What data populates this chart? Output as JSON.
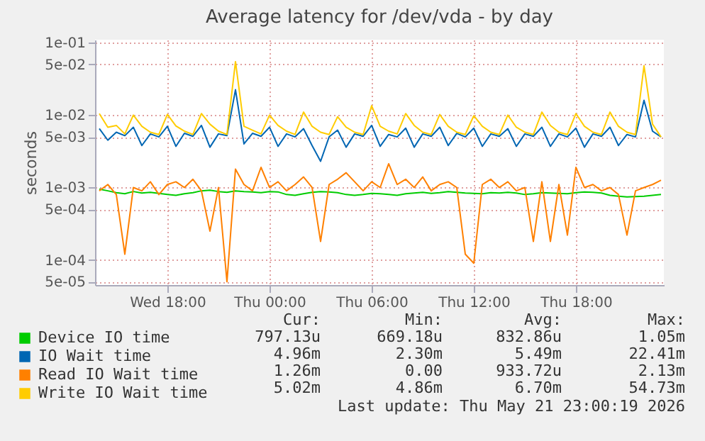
{
  "chart_data": {
    "type": "line",
    "title": "Average latency for /dev/vda - by day",
    "ylabel": "seconds",
    "log": "y",
    "grid": true,
    "legend": "bottom",
    "xlim": [
      "2026-05-20T13:45",
      "2026-05-21T23:10"
    ],
    "xticks": [
      {
        "value": "2026-05-20T18:00",
        "label": "Wed 18:00"
      },
      {
        "value": "2026-05-21T00:00",
        "label": "Thu 00:00"
      },
      {
        "value": "2026-05-21T06:00",
        "label": "Thu 06:00"
      },
      {
        "value": "2026-05-21T12:00",
        "label": "Thu 12:00"
      },
      {
        "value": "2026-05-21T18:00",
        "label": "Thu 18:00"
      }
    ],
    "ylim": [
      4.5e-05,
      0.11
    ],
    "yticks": [
      {
        "value": 5e-05,
        "label": "5e-05"
      },
      {
        "value": 0.0001,
        "label": "1e-04"
      },
      {
        "value": 0.0005,
        "label": "5e-04"
      },
      {
        "value": 0.001,
        "label": "1e-03"
      },
      {
        "value": 0.005,
        "label": "5e-03"
      },
      {
        "value": 0.01,
        "label": "1e-02"
      },
      {
        "value": 0.05,
        "label": "5e-02"
      },
      {
        "value": 0.1,
        "label": "1e-01"
      }
    ],
    "x": [
      "2026-05-20T14:00",
      "2026-05-20T14:30",
      "2026-05-20T15:00",
      "2026-05-20T15:30",
      "2026-05-20T16:00",
      "2026-05-20T16:30",
      "2026-05-20T17:00",
      "2026-05-20T17:30",
      "2026-05-20T18:00",
      "2026-05-20T18:30",
      "2026-05-20T19:00",
      "2026-05-20T19:30",
      "2026-05-20T20:00",
      "2026-05-20T20:30",
      "2026-05-20T21:00",
      "2026-05-20T21:30",
      "2026-05-20T22:00",
      "2026-05-20T22:30",
      "2026-05-20T23:00",
      "2026-05-20T23:30",
      "2026-05-21T00:00",
      "2026-05-21T00:30",
      "2026-05-21T01:00",
      "2026-05-21T01:30",
      "2026-05-21T02:00",
      "2026-05-21T02:30",
      "2026-05-21T03:00",
      "2026-05-21T03:30",
      "2026-05-21T04:00",
      "2026-05-21T04:30",
      "2026-05-21T05:00",
      "2026-05-21T05:30",
      "2026-05-21T06:00",
      "2026-05-21T06:30",
      "2026-05-21T07:00",
      "2026-05-21T07:30",
      "2026-05-21T08:00",
      "2026-05-21T08:30",
      "2026-05-21T09:00",
      "2026-05-21T09:30",
      "2026-05-21T10:00",
      "2026-05-21T10:30",
      "2026-05-21T11:00",
      "2026-05-21T11:30",
      "2026-05-21T12:00",
      "2026-05-21T12:30",
      "2026-05-21T13:00",
      "2026-05-21T13:30",
      "2026-05-21T14:00",
      "2026-05-21T14:30",
      "2026-05-21T15:00",
      "2026-05-21T15:30",
      "2026-05-21T16:00",
      "2026-05-21T16:30",
      "2026-05-21T17:00",
      "2026-05-21T17:30",
      "2026-05-21T18:00",
      "2026-05-21T18:30",
      "2026-05-21T19:00",
      "2026-05-21T19:30",
      "2026-05-21T20:00",
      "2026-05-21T20:30",
      "2026-05-21T21:00",
      "2026-05-21T21:30",
      "2026-05-21T22:00",
      "2026-05-21T22:30",
      "2026-05-21T23:00"
    ],
    "series": [
      {
        "name": "Device IO time",
        "color": "#00cc00",
        "values": [
          0.00095,
          0.0009,
          0.00085,
          0.00082,
          0.00088,
          0.00084,
          0.00086,
          0.00083,
          0.0008,
          0.00078,
          0.00082,
          0.00085,
          0.0009,
          0.00092,
          0.00088,
          0.00086,
          0.0009,
          0.00088,
          0.00087,
          0.00085,
          0.00088,
          0.00087,
          0.0008,
          0.00078,
          0.00082,
          0.00086,
          0.00088,
          0.00087,
          0.00085,
          0.0008,
          0.00078,
          0.0008,
          0.00083,
          0.00082,
          0.0008,
          0.00078,
          0.00082,
          0.00084,
          0.00086,
          0.00083,
          0.00085,
          0.00088,
          0.00086,
          0.00084,
          0.00083,
          0.00082,
          0.00085,
          0.00084,
          0.00086,
          0.00084,
          0.0008,
          0.00082,
          0.00085,
          0.00084,
          0.00083,
          0.00082,
          0.00085,
          0.00087,
          0.00086,
          0.00084,
          0.00078,
          0.00076,
          0.00074,
          0.00075,
          0.00076,
          0.00078,
          0.0008
        ]
      },
      {
        "name": "IO Wait time",
        "color": "#0066b3",
        "values": [
          0.0065,
          0.0045,
          0.0058,
          0.0052,
          0.0068,
          0.0038,
          0.0055,
          0.005,
          0.007,
          0.0037,
          0.0056,
          0.0051,
          0.0072,
          0.0036,
          0.0055,
          0.0052,
          0.0224,
          0.004,
          0.0056,
          0.0051,
          0.0068,
          0.0037,
          0.0055,
          0.005,
          0.0065,
          0.0038,
          0.0023,
          0.005,
          0.0062,
          0.0036,
          0.0055,
          0.0051,
          0.0072,
          0.0037,
          0.0054,
          0.005,
          0.0066,
          0.0036,
          0.0055,
          0.0051,
          0.0068,
          0.0038,
          0.0056,
          0.005,
          0.0066,
          0.0037,
          0.0055,
          0.0051,
          0.0065,
          0.0037,
          0.0055,
          0.0051,
          0.0068,
          0.0037,
          0.0055,
          0.005,
          0.0066,
          0.0036,
          0.0055,
          0.0051,
          0.0068,
          0.0038,
          0.0054,
          0.005,
          0.016,
          0.006,
          0.005
        ]
      },
      {
        "name": "Read IO Wait time",
        "color": "#ff8000",
        "values": [
          0.0009,
          0.0011,
          0.0008,
          0.00012,
          0.001,
          0.0009,
          0.0012,
          0.0008,
          0.0011,
          0.0012,
          0.001,
          0.0013,
          0.0009,
          0.00025,
          0.001,
          5e-05,
          0.0018,
          0.0011,
          0.0009,
          0.0019,
          0.001,
          0.0012,
          0.0009,
          0.0011,
          0.0014,
          0.001,
          0.00018,
          0.0011,
          0.0013,
          0.0016,
          0.0012,
          0.0009,
          0.0012,
          0.001,
          0.00213,
          0.0011,
          0.0013,
          0.001,
          0.0014,
          0.0009,
          0.0011,
          0.0012,
          0.001,
          0.00012,
          9e-05,
          0.0011,
          0.0013,
          0.001,
          0.0012,
          0.0009,
          0.001,
          0.00018,
          0.0012,
          0.00018,
          0.0011,
          0.00022,
          0.0019,
          0.001,
          0.0011,
          0.0009,
          0.001,
          0.0008,
          0.00022,
          0.0009,
          0.001,
          0.0011,
          0.00126
        ]
      },
      {
        "name": "Write IO Wait time",
        "color": "#ffcc00",
        "values": [
          0.0105,
          0.0068,
          0.0072,
          0.0055,
          0.01,
          0.007,
          0.0058,
          0.0054,
          0.0102,
          0.0071,
          0.006,
          0.0054,
          0.0105,
          0.0075,
          0.006,
          0.0054,
          0.0547,
          0.007,
          0.0062,
          0.0055,
          0.01,
          0.0072,
          0.006,
          0.0054,
          0.011,
          0.007,
          0.0058,
          0.0054,
          0.0095,
          0.0068,
          0.0058,
          0.0054,
          0.0135,
          0.007,
          0.006,
          0.0055,
          0.0105,
          0.0072,
          0.0058,
          0.0054,
          0.0102,
          0.007,
          0.0058,
          0.0054,
          0.0098,
          0.007,
          0.0058,
          0.0054,
          0.01,
          0.0068,
          0.0058,
          0.0054,
          0.011,
          0.0072,
          0.0058,
          0.0054,
          0.0105,
          0.007,
          0.0058,
          0.0054,
          0.011,
          0.007,
          0.0058,
          0.0054,
          0.048,
          0.0075,
          0.005
        ]
      }
    ],
    "annotations": [
      "Cur:",
      "Min:",
      "Avg:",
      "Max:",
      "797.13u",
      "669.18u",
      "832.86u",
      "1.05m",
      "4.96m",
      "2.30m",
      "5.49m",
      "22.41m",
      "1.26m",
      "0.00",
      "933.72u",
      "2.13m",
      "5.02m",
      "4.86m",
      "6.70m",
      "54.73m",
      "Last update: Thu May 21 23:00:19 2026"
    ]
  }
}
